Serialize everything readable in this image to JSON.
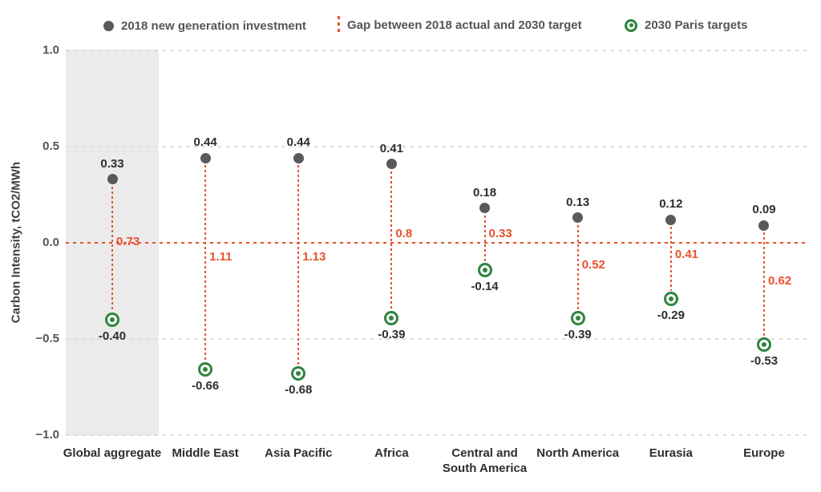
{
  "chart_data": {
    "type": "scatter",
    "title": "",
    "ylabel": "Carbon Intensity, tCO2/MWh",
    "xlabel": "",
    "ylim": [
      -1.0,
      1.0
    ],
    "grid": true,
    "legend_position": "top",
    "yticks": [
      {
        "value": 1.0,
        "label": "1.0"
      },
      {
        "value": 0.5,
        "label": "0.5"
      },
      {
        "value": 0.0,
        "label": "0.0"
      },
      {
        "value": -0.5,
        "label": "−0.5"
      },
      {
        "value": -1.0,
        "label": "−1.0"
      }
    ],
    "legend": [
      {
        "name": "investment-2018",
        "label": "2018 new generation investment",
        "marker": "filled-dot-icon",
        "color": "#58595B"
      },
      {
        "name": "gap",
        "label": "Gap between 2018 actual and 2030 target",
        "marker": "dotted-line-icon",
        "color": "#E8512D"
      },
      {
        "name": "paris-targets",
        "label": "2030 Paris targets",
        "marker": "ring-dot-icon",
        "color": "#2F853F"
      }
    ],
    "categories": [
      "Global aggregate",
      "Middle East",
      "Asia Pacific",
      "Africa",
      "Central and South America",
      "North America",
      "Eurasia",
      "Europe"
    ],
    "series": [
      {
        "name": "2018 new generation investment",
        "values": [
          0.33,
          0.44,
          0.44,
          0.41,
          0.18,
          0.13,
          0.12,
          0.09
        ]
      },
      {
        "name": "2030 Paris targets",
        "values": [
          -0.4,
          -0.66,
          -0.68,
          -0.39,
          -0.14,
          -0.39,
          -0.29,
          -0.53
        ]
      },
      {
        "name": "Gap between 2018 actual and 2030 target",
        "values": [
          0.73,
          1.11,
          1.13,
          0.8,
          0.33,
          0.52,
          0.41,
          0.62
        ]
      }
    ],
    "regions": [
      {
        "label_lines": [
          "Global aggregate"
        ],
        "investment": "0.33",
        "target": "-0.40",
        "gap": "0.73",
        "gap_label_dy": 0,
        "highlight": true
      },
      {
        "label_lines": [
          "Middle East"
        ],
        "investment": "0.44",
        "target": "-0.66",
        "gap": "1.11",
        "gap_label_dy": 19,
        "highlight": false
      },
      {
        "label_lines": [
          "Asia Pacific"
        ],
        "investment": "0.44",
        "target": "-0.68",
        "gap": "1.13",
        "gap_label_dy": 19,
        "highlight": false
      },
      {
        "label_lines": [
          "Africa"
        ],
        "investment": "0.41",
        "target": "-0.39",
        "gap": "0.8",
        "gap_label_dy": -10,
        "highlight": false
      },
      {
        "label_lines": [
          "Central and",
          "South America"
        ],
        "investment": "0.18",
        "target": "-0.14",
        "gap": "0.33",
        "gap_label_dy": -10,
        "highlight": false
      },
      {
        "label_lines": [
          "North America"
        ],
        "investment": "0.13",
        "target": "-0.39",
        "gap": "0.52",
        "gap_label_dy": 29,
        "highlight": false
      },
      {
        "label_lines": [
          "Eurasia"
        ],
        "investment": "0.12",
        "target": "-0.29",
        "gap": "0.41",
        "gap_label_dy": 16,
        "highlight": false
      },
      {
        "label_lines": [
          "Europe"
        ],
        "investment": "0.09",
        "target": "-0.53",
        "gap": "0.62",
        "gap_label_dy": 49,
        "highlight": false
      }
    ],
    "colors": {
      "investment": "#58595B",
      "gap": "#E8512D",
      "target": "#2F853F",
      "band": "#EBEBEB",
      "grid": "#DBDBDB",
      "value_text": "#2E2E2E",
      "tick_text": "#555555",
      "legend_text": "#53565A"
    }
  }
}
